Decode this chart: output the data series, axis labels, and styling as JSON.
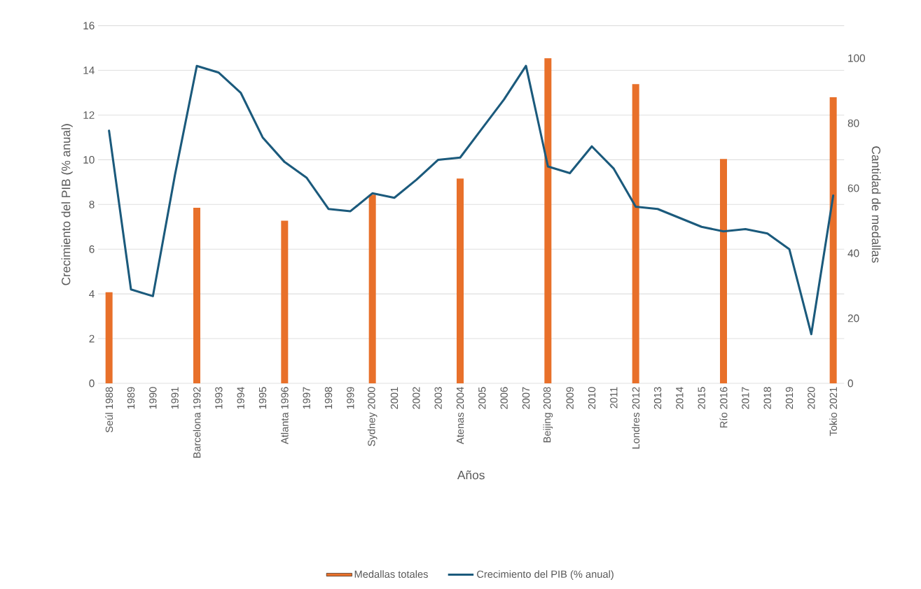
{
  "chart_data": {
    "type": "bar",
    "categories": [
      "Seúl 1988",
      "1989",
      "1990",
      "1991",
      "Barcelona 1992",
      "1993",
      "1994",
      "1995",
      "Atlanta 1996",
      "1997",
      "1998",
      "1999",
      "Sydney 2000",
      "2001",
      "2002",
      "2003",
      "Atenas 2004",
      "2005",
      "2006",
      "2007",
      "Beijing 2008",
      "2009",
      "2010",
      "2011",
      "Londres 2012",
      "2013",
      "2014",
      "2015",
      "Río 2016",
      "2017",
      "2018",
      "2019",
      "2020",
      "Tokio 2021"
    ],
    "series": [
      {
        "name": "Medallas totales",
        "axis": "y2",
        "color": "#e8702a",
        "values": [
          28,
          null,
          null,
          null,
          54,
          null,
          null,
          null,
          50,
          null,
          null,
          null,
          58,
          null,
          null,
          null,
          63,
          null,
          null,
          null,
          100,
          null,
          null,
          null,
          92,
          null,
          null,
          null,
          69,
          null,
          null,
          null,
          null,
          88
        ]
      },
      {
        "name": "Crecimiento del PIB (% anual)",
        "type": "line",
        "color": "#1b5a7c",
        "values": [
          11.3,
          4.2,
          3.9,
          9.3,
          14.2,
          13.9,
          13.0,
          11.0,
          9.9,
          9.2,
          7.8,
          7.7,
          8.5,
          8.3,
          9.1,
          10.0,
          10.1,
          11.4,
          12.7,
          14.2,
          9.7,
          9.4,
          10.6,
          9.6,
          7.9,
          7.8,
          7.4,
          7.0,
          6.8,
          6.9,
          6.7,
          6.0,
          2.2,
          8.4
        ]
      }
    ],
    "xlabel": "Años",
    "ylabel": "Crecimiento del PIB (% anual)",
    "y2label": "Cantidad de medallas",
    "ylim": [
      0,
      16
    ],
    "yticks": [
      0,
      2,
      4,
      6,
      8,
      10,
      12,
      14,
      16
    ],
    "y2lim": [
      0,
      110
    ],
    "y2ticks": [
      0,
      20,
      40,
      60,
      80,
      100
    ],
    "grid": "y",
    "legend": "bottom"
  }
}
